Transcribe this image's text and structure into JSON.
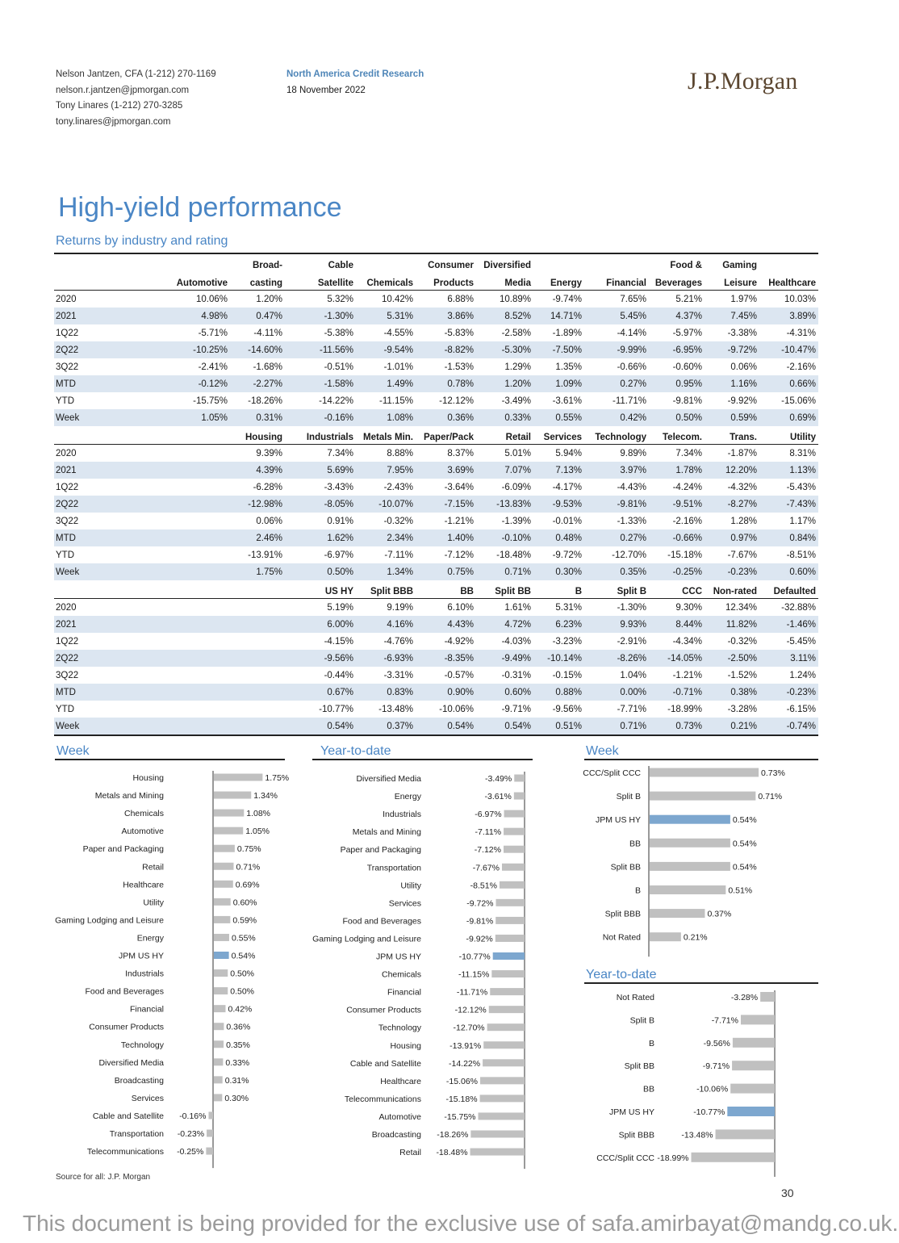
{
  "header": {
    "authors": [
      "Nelson Jantzen, CFA (1-212) 270-1169",
      "nelson.r.jantzen@jpmorgan.com",
      "Tony Linares (1-212) 270-3285",
      "tony.linares@jpmorgan.com"
    ],
    "department": "North America Credit Research",
    "date": "18 November 2022",
    "logo": "J.P.Morgan"
  },
  "title": "High-yield performance",
  "subtitle": "Returns by industry and rating",
  "table1": {
    "headers_top": [
      "",
      "",
      "Broad-",
      "Cable",
      "",
      "Consumer",
      "Diversified",
      "",
      "",
      "Food &",
      "Gaming",
      ""
    ],
    "headers": [
      "",
      "Automotive",
      "casting",
      "Satellite",
      "Chemicals",
      "Products",
      "Media",
      "Energy",
      "Financial",
      "Beverages",
      "Leisure",
      "Healthcare"
    ],
    "rows": [
      [
        "2020",
        "10.06%",
        "1.20%",
        "5.32%",
        "10.42%",
        "6.88%",
        "10.89%",
        "-9.74%",
        "7.65%",
        "5.21%",
        "1.97%",
        "10.03%"
      ],
      [
        "2021",
        "4.98%",
        "0.47%",
        "-1.30%",
        "5.31%",
        "3.86%",
        "8.52%",
        "14.71%",
        "5.45%",
        "4.37%",
        "7.45%",
        "3.89%"
      ],
      [
        "1Q22",
        "-5.71%",
        "-4.11%",
        "-5.38%",
        "-4.55%",
        "-5.83%",
        "-2.58%",
        "-1.89%",
        "-4.14%",
        "-5.97%",
        "-3.38%",
        "-4.31%"
      ],
      [
        "2Q22",
        "-10.25%",
        "-14.60%",
        "-11.56%",
        "-9.54%",
        "-8.82%",
        "-5.30%",
        "-7.50%",
        "-9.99%",
        "-6.95%",
        "-9.72%",
        "-10.47%"
      ],
      [
        "3Q22",
        "-2.41%",
        "-1.68%",
        "-0.51%",
        "-1.01%",
        "-1.53%",
        "1.29%",
        "1.35%",
        "-0.66%",
        "-0.60%",
        "0.06%",
        "-2.16%"
      ],
      [
        "MTD",
        "-0.12%",
        "-2.27%",
        "-1.58%",
        "1.49%",
        "0.78%",
        "1.20%",
        "1.09%",
        "0.27%",
        "0.95%",
        "1.16%",
        "0.66%"
      ],
      [
        "YTD",
        "-15.75%",
        "-18.26%",
        "-14.22%",
        "-11.15%",
        "-12.12%",
        "-3.49%",
        "-3.61%",
        "-11.71%",
        "-9.81%",
        "-9.92%",
        "-15.06%"
      ],
      [
        "Week",
        "1.05%",
        "0.31%",
        "-0.16%",
        "1.08%",
        "0.36%",
        "0.33%",
        "0.55%",
        "0.42%",
        "0.50%",
        "0.59%",
        "0.69%"
      ]
    ]
  },
  "table2": {
    "headers": [
      "",
      "",
      "Housing",
      "Industrials",
      "Metals Min.",
      "Paper/Pack",
      "Retail",
      "Services",
      "Technology",
      "Telecom.",
      "Trans.",
      "Utility"
    ],
    "rows": [
      [
        "2020",
        "",
        "9.39%",
        "7.34%",
        "8.88%",
        "8.37%",
        "5.01%",
        "5.94%",
        "9.89%",
        "7.34%",
        "-1.87%",
        "8.31%"
      ],
      [
        "2021",
        "",
        "4.39%",
        "5.69%",
        "7.95%",
        "3.69%",
        "7.07%",
        "7.13%",
        "3.97%",
        "1.78%",
        "12.20%",
        "1.13%"
      ],
      [
        "1Q22",
        "",
        "-6.28%",
        "-3.43%",
        "-2.43%",
        "-3.64%",
        "-6.09%",
        "-4.17%",
        "-4.43%",
        "-4.24%",
        "-4.32%",
        "-5.43%"
      ],
      [
        "2Q22",
        "",
        "-12.98%",
        "-8.05%",
        "-10.07%",
        "-7.15%",
        "-13.83%",
        "-9.53%",
        "-9.81%",
        "-9.51%",
        "-8.27%",
        "-7.43%"
      ],
      [
        "3Q22",
        "",
        "0.06%",
        "0.91%",
        "-0.32%",
        "-1.21%",
        "-1.39%",
        "-0.01%",
        "-1.33%",
        "-2.16%",
        "1.28%",
        "1.17%"
      ],
      [
        "MTD",
        "",
        "2.46%",
        "1.62%",
        "2.34%",
        "1.40%",
        "-0.10%",
        "0.48%",
        "0.27%",
        "-0.66%",
        "0.97%",
        "0.84%"
      ],
      [
        "YTD",
        "",
        "-13.91%",
        "-6.97%",
        "-7.11%",
        "-7.12%",
        "-18.48%",
        "-9.72%",
        "-12.70%",
        "-15.18%",
        "-7.67%",
        "-8.51%"
      ],
      [
        "Week",
        "",
        "1.75%",
        "0.50%",
        "1.34%",
        "0.75%",
        "0.71%",
        "0.30%",
        "0.35%",
        "-0.25%",
        "-0.23%",
        "0.60%"
      ]
    ]
  },
  "table3": {
    "headers": [
      "",
      "",
      "",
      "US HY",
      "Split BBB",
      "BB",
      "Split BB",
      "B",
      "Split B",
      "CCC",
      "Non-rated",
      "Defaulted"
    ],
    "rows": [
      [
        "2020",
        "",
        "",
        "5.19%",
        "9.19%",
        "6.10%",
        "1.61%",
        "5.31%",
        "-1.30%",
        "9.30%",
        "12.34%",
        "-32.88%"
      ],
      [
        "2021",
        "",
        "",
        "6.00%",
        "4.16%",
        "4.43%",
        "4.72%",
        "6.23%",
        "9.93%",
        "8.44%",
        "11.82%",
        "-1.46%"
      ],
      [
        "1Q22",
        "",
        "",
        "-4.15%",
        "-4.76%",
        "-4.92%",
        "-4.03%",
        "-3.23%",
        "-2.91%",
        "-4.34%",
        "-0.32%",
        "-5.45%"
      ],
      [
        "2Q22",
        "",
        "",
        "-9.56%",
        "-6.93%",
        "-8.35%",
        "-9.49%",
        "-10.14%",
        "-8.26%",
        "-14.05%",
        "-2.50%",
        "3.11%"
      ],
      [
        "3Q22",
        "",
        "",
        "-0.44%",
        "-3.31%",
        "-0.57%",
        "-0.31%",
        "-0.15%",
        "1.04%",
        "-1.21%",
        "-1.52%",
        "1.24%"
      ],
      [
        "MTD",
        "",
        "",
        "0.67%",
        "0.83%",
        "0.90%",
        "0.60%",
        "0.88%",
        "0.00%",
        "-0.71%",
        "0.38%",
        "-0.23%"
      ],
      [
        "YTD",
        "",
        "",
        "-10.77%",
        "-13.48%",
        "-10.06%",
        "-9.71%",
        "-9.56%",
        "-7.71%",
        "-18.99%",
        "-3.28%",
        "-6.15%"
      ],
      [
        "Week",
        "",
        "",
        "0.54%",
        "0.37%",
        "0.54%",
        "0.54%",
        "0.51%",
        "0.71%",
        "0.73%",
        "0.21%",
        "-0.74%"
      ]
    ]
  },
  "chart_data": [
    {
      "type": "bar",
      "orientation": "horizontal",
      "title": "Week",
      "highlight": "JPM US HY",
      "categories": [
        "Housing",
        "Metals and Mining",
        "Chemicals",
        "Automotive",
        "Paper and Packaging",
        "Retail",
        "Healthcare",
        "Utility",
        "Gaming Lodging and Leisure",
        "Energy",
        "JPM US HY",
        "Industrials",
        "Food and Beverages",
        "Financial",
        "Consumer Products",
        "Technology",
        "Diversified Media",
        "Broadcasting",
        "Services",
        "Cable and Satellite",
        "Transportation",
        "Telecommunications"
      ],
      "values": [
        1.75,
        1.34,
        1.08,
        1.05,
        0.75,
        0.71,
        0.69,
        0.6,
        0.59,
        0.55,
        0.54,
        0.5,
        0.5,
        0.42,
        0.36,
        0.35,
        0.33,
        0.31,
        0.3,
        -0.16,
        -0.23,
        -0.25
      ],
      "labels": [
        "1.75%",
        "1.34%",
        "1.08%",
        "1.05%",
        "0.75%",
        "0.71%",
        "0.69%",
        "0.60%",
        "0.59%",
        "0.55%",
        "0.54%",
        "0.50%",
        "0.50%",
        "0.42%",
        "0.36%",
        "0.35%",
        "0.33%",
        "0.31%",
        "0.30%",
        "-0.16%",
        "-0.23%",
        "-0.25%"
      ]
    },
    {
      "type": "bar",
      "orientation": "horizontal",
      "title": "Year-to-date",
      "highlight": "JPM US HY",
      "categories": [
        "Diversified Media",
        "Energy",
        "Industrials",
        "Metals and Mining",
        "Paper and Packaging",
        "Transportation",
        "Utility",
        "Services",
        "Food and Beverages",
        "Gaming Lodging and Leisure",
        "JPM US HY",
        "Chemicals",
        "Financial",
        "Consumer Products",
        "Technology",
        "Housing",
        "Cable and Satellite",
        "Healthcare",
        "Telecommunications",
        "Automotive",
        "Broadcasting",
        "Retail"
      ],
      "values": [
        -3.49,
        -3.61,
        -6.97,
        -7.11,
        -7.12,
        -7.67,
        -8.51,
        -9.72,
        -9.81,
        -9.92,
        -10.77,
        -11.15,
        -11.71,
        -12.12,
        -12.7,
        -13.91,
        -14.22,
        -15.06,
        -15.18,
        -15.75,
        -18.26,
        -18.48
      ],
      "labels": [
        "-3.49%",
        "-3.61%",
        "-6.97%",
        "-7.11%",
        "-7.12%",
        "-7.67%",
        "-8.51%",
        "-9.72%",
        "-9.81%",
        "-9.92%",
        "-10.77%",
        "-11.15%",
        "-11.71%",
        "-12.12%",
        "-12.70%",
        "-13.91%",
        "-14.22%",
        "-15.06%",
        "-15.18%",
        "-15.75%",
        "-18.26%",
        "-18.48%"
      ]
    },
    {
      "type": "bar",
      "orientation": "horizontal",
      "title": "Week",
      "highlight": "JPM US HY",
      "categories": [
        "CCC/Split CCC",
        "Split B",
        "JPM US HY",
        "BB",
        "Split BB",
        "B",
        "Split BBB",
        "Not Rated"
      ],
      "values": [
        0.73,
        0.71,
        0.54,
        0.54,
        0.54,
        0.51,
        0.37,
        0.21
      ],
      "labels": [
        "0.73%",
        "0.71%",
        "0.54%",
        "0.54%",
        "0.54%",
        "0.51%",
        "0.37%",
        "0.21%"
      ]
    },
    {
      "type": "bar",
      "orientation": "horizontal",
      "title": "Year-to-date",
      "highlight": "JPM US HY",
      "categories": [
        "Not Rated",
        "Split B",
        "B",
        "Split BB",
        "BB",
        "JPM US HY",
        "Split BBB",
        "CCC/Split CCC"
      ],
      "values": [
        -3.28,
        -7.71,
        -9.56,
        -9.71,
        -10.06,
        -10.77,
        -13.48,
        -18.99
      ],
      "labels": [
        "-3.28%",
        "-7.71%",
        "-9.56%",
        "-9.71%",
        "-10.06%",
        "-10.77%",
        "-13.48%",
        "-18.99%"
      ]
    }
  ],
  "colors": {
    "bar": "#c0c0c0",
    "highlight": "#7da7cf",
    "accent": "#4a86c5",
    "shade": "#dce6f1"
  },
  "footer": {
    "source": "Source for all: J.P. Morgan",
    "page": "30",
    "watermark": "This document is being provided for the exclusive use of safa.amirbayat@mandg.co.uk."
  }
}
